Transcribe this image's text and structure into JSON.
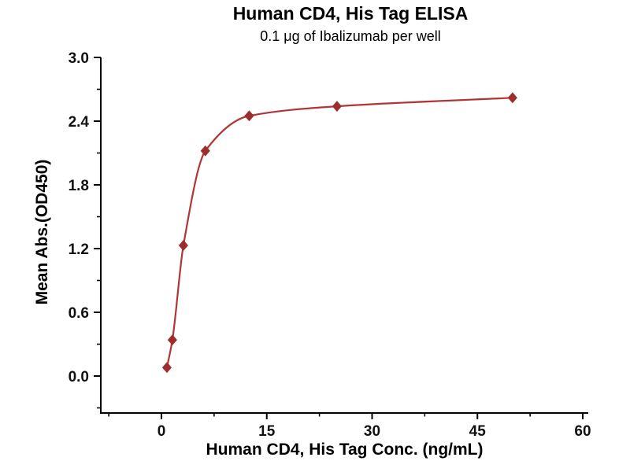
{
  "chart_data": {
    "type": "scatter",
    "title": "Human CD4, His Tag ELISA",
    "subtitle": "0.1 μg of Ibalizumab per well",
    "xlabel": "Human CD4, His Tag Conc. (ng/mL)",
    "ylabel": "Mean Abs.(OD450)",
    "x": [
      0.78,
      1.56,
      3.13,
      6.25,
      12.5,
      25,
      50
    ],
    "y": [
      0.08,
      0.34,
      1.23,
      2.12,
      2.45,
      2.54,
      2.62
    ],
    "xlim": [
      0,
      60
    ],
    "ylim": [
      0,
      3.0
    ],
    "xticks": [
      0,
      15,
      30,
      45,
      60
    ],
    "xtick_labels": [
      "0",
      "15",
      "30",
      "45",
      "60"
    ],
    "xticks_minor": [
      -7.5,
      7.5,
      22.5,
      37.5,
      52.5
    ],
    "yticks": [
      0.0,
      0.6,
      1.2,
      1.8,
      2.4,
      3.0
    ],
    "ytick_labels": [
      "0.0",
      "0.6",
      "1.2",
      "1.8",
      "2.4",
      "3.0"
    ],
    "yticks_minor": [
      -0.3,
      0.3,
      0.9,
      1.5,
      2.1,
      2.7
    ],
    "marker": "diamond",
    "line_color": "#B13535",
    "marker_color": "#9E2D2D",
    "axis_color": "#000000",
    "grid": false,
    "legend": "none"
  }
}
